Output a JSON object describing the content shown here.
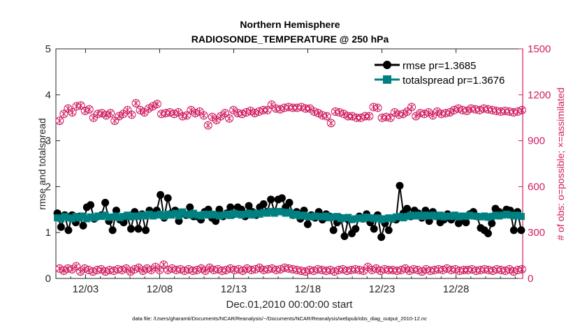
{
  "chart_data": {
    "type": "line",
    "title_line1": "Northern Hemisphere",
    "title_line2": "RADIOSONDE_TEMPERATURE @ 250 hPa",
    "xlabel": "Dec.01,2010 00:00:00 start",
    "ylabel_left": "rmse and totalspread",
    "ylabel_right": "# of obs: o=possible; ×=assimilated",
    "footer": "data file: /Users/gharamti/Documents/NCAR/Reanalysis/~/Documents/NCAR/Reanalysis/webpub/obs_diag_output_2010-12.nc",
    "xlim": [
      0,
      31.5
    ],
    "ylim_left": [
      0,
      5
    ],
    "ylim_right": [
      0,
      1500
    ],
    "x_tick_values": [
      2,
      7,
      12,
      17,
      22,
      27
    ],
    "x_tick_labels": [
      "12/03",
      "12/08",
      "12/13",
      "12/18",
      "12/23",
      "12/28"
    ],
    "y_left_ticks": [
      "0",
      "1",
      "2",
      "3",
      "4",
      "5"
    ],
    "y_right_ticks": [
      "0",
      "300",
      "600",
      "900",
      "1200",
      "1500"
    ],
    "legend": [
      {
        "name": "rmse  pr=1.3685",
        "color": "#000000",
        "marker": "circle"
      },
      {
        "name": "totalspread  pr=1.3676",
        "color": "#008080",
        "marker": "square"
      }
    ],
    "rmse": [
      1.42,
      1.12,
      1.38,
      1.05,
      1.38,
      1.22,
      1.35,
      1.15,
      1.55,
      1.6,
      1.3,
      1.35,
      1.38,
      1.65,
      1.25,
      1.05,
      1.48,
      1.28,
      1.22,
      1.35,
      1.08,
      1.45,
      1.08,
      1.4,
      1.05,
      1.48,
      1.4,
      1.48,
      1.82,
      1.32,
      1.75,
      1.42,
      1.48,
      1.25,
      1.42,
      1.38,
      1.55,
      1.35,
      1.35,
      1.28,
      1.45,
      1.5,
      1.32,
      1.25,
      1.5,
      1.35,
      1.42,
      1.55,
      1.4,
      1.55,
      1.5,
      1.35,
      1.58,
      1.45,
      1.38,
      1.55,
      1.62,
      1.45,
      1.72,
      1.45,
      1.72,
      1.75,
      1.55,
      1.65,
      1.38,
      1.45,
      1.3,
      1.48,
      1.18,
      1.38,
      1.32,
      1.45,
      1.28,
      1.4,
      1.35,
      1.05,
      1.22,
      1.32,
      0.92,
      1.28,
      0.98,
      1.08,
      1.35,
      1.3,
      1.4,
      1.22,
      1.08,
      1.38,
      0.9,
      1.2,
      1.05,
      1.3,
      1.28,
      2.02,
      1.42,
      1.52,
      1.35,
      1.48,
      1.42,
      1.32,
      1.48,
      1.25,
      1.45,
      1.35,
      1.22,
      1.28,
      1.4,
      1.28,
      1.35,
      1.2,
      1.32,
      1.22,
      1.4,
      1.45,
      1.35,
      1.1,
      1.05,
      0.98,
      1.2,
      1.52,
      1.45,
      1.4,
      1.5,
      1.48,
      1.05,
      1.45,
      1.05
    ],
    "totalspread": [
      1.32,
      1.3,
      1.35,
      1.32,
      1.3,
      1.35,
      1.32,
      1.36,
      1.3,
      1.34,
      1.32,
      1.36,
      1.35,
      1.38,
      1.33,
      1.34,
      1.36,
      1.32,
      1.35,
      1.38,
      1.34,
      1.36,
      1.35,
      1.38,
      1.36,
      1.4,
      1.36,
      1.38,
      1.4,
      1.35,
      1.4,
      1.38,
      1.42,
      1.36,
      1.45,
      1.4,
      1.38,
      1.42,
      1.38,
      1.36,
      1.4,
      1.38,
      1.4,
      1.38,
      1.36,
      1.38,
      1.4,
      1.37,
      1.42,
      1.4,
      1.38,
      1.4,
      1.42,
      1.38,
      1.42,
      1.4,
      1.44,
      1.42,
      1.46,
      1.42,
      1.46,
      1.45,
      1.42,
      1.44,
      1.38,
      1.4,
      1.36,
      1.38,
      1.35,
      1.34,
      1.36,
      1.35,
      1.34,
      1.36,
      1.32,
      1.34,
      1.35,
      1.3,
      1.32,
      1.33,
      1.28,
      1.3,
      1.32,
      1.3,
      1.34,
      1.32,
      1.3,
      1.32,
      1.28,
      1.3,
      1.32,
      1.3,
      1.34,
      1.35,
      1.32,
      1.35,
      1.38,
      1.36,
      1.38,
      1.35,
      1.38,
      1.36,
      1.38,
      1.35,
      1.38,
      1.34,
      1.36,
      1.35,
      1.38,
      1.34,
      1.36,
      1.35,
      1.38,
      1.36,
      1.35,
      1.34,
      1.36,
      1.33,
      1.35,
      1.38,
      1.36,
      1.38,
      1.4,
      1.38,
      1.36,
      1.38,
      1.35
    ],
    "obs_possible": [
      1030,
      1075,
      1110,
      1085,
      1125,
      1130,
      1095,
      1105,
      1050,
      1075,
      1080,
      1065,
      1080,
      1030,
      1060,
      1075,
      1100,
      1070,
      1145,
      1100,
      1085,
      1110,
      1125,
      1140,
      1075,
      1080,
      1085,
      1075,
      1085,
      1060,
      1065,
      1100,
      1080,
      1090,
      1065,
      1000,
      1055,
      1035,
      1060,
      1080,
      1045,
      1100,
      1080,
      1075,
      1085,
      1095,
      1080,
      1090,
      1100,
      1100,
      1135,
      1110,
      1105,
      1115,
      1120,
      1115,
      1115,
      1120,
      1110,
      1110,
      1090,
      1080,
      1065,
      1060,
      1015,
      1090,
      1085,
      1075,
      1060,
      1060,
      1050,
      1050,
      1060,
      1060,
      1120,
      1115,
      1050,
      1055,
      1050,
      1085,
      1070,
      1075,
      1090,
      1120,
      1060,
      1080,
      1075,
      1085,
      1065,
      1090,
      1075,
      1080,
      1085,
      1100,
      1110,
      1100,
      1095,
      1110,
      1105,
      1100,
      1110,
      1105,
      1100,
      1095,
      1090,
      1095,
      1090,
      1085,
      1090,
      1100
    ],
    "obs_assimilated": [
      1030,
      1075,
      1110,
      1085,
      1125,
      1130,
      1095,
      1105,
      1050,
      1075,
      1080,
      1065,
      1080,
      1030,
      1060,
      1075,
      1100,
      1070,
      1145,
      1100,
      1085,
      1110,
      1125,
      1140,
      1075,
      1080,
      1085,
      1075,
      1085,
      1060,
      1065,
      1100,
      1080,
      1090,
      1065,
      1000,
      1055,
      1035,
      1060,
      1080,
      1045,
      1100,
      1080,
      1075,
      1085,
      1095,
      1080,
      1090,
      1100,
      1100,
      1135,
      1110,
      1105,
      1115,
      1120,
      1115,
      1115,
      1120,
      1110,
      1110,
      1090,
      1080,
      1065,
      1060,
      1015,
      1090,
      1085,
      1075,
      1060,
      1060,
      1050,
      1050,
      1060,
      1060,
      1120,
      1115,
      1050,
      1055,
      1050,
      1085,
      1070,
      1075,
      1090,
      1120,
      1060,
      1080,
      1075,
      1085,
      1065,
      1090,
      1075,
      1080,
      1085,
      1100,
      1110,
      1100,
      1095,
      1110,
      1105,
      1100,
      1110,
      1105,
      1100,
      1095,
      1090,
      1095,
      1090,
      1085,
      1090,
      1100
    ],
    "obs_low_possible": [
      65,
      50,
      65,
      60,
      80,
      45,
      65,
      55,
      45,
      55,
      60,
      45,
      55,
      50,
      60,
      55,
      65,
      45,
      60,
      70,
      50,
      65,
      55,
      75,
      55,
      90,
      55,
      65,
      55,
      60,
      50,
      60,
      50,
      55,
      65,
      50,
      70,
      55,
      60,
      50,
      55,
      65,
      55,
      60,
      50,
      65,
      55,
      60,
      70,
      55,
      60,
      65,
      55,
      60,
      70,
      65,
      60,
      55,
      50,
      45,
      55,
      50,
      60,
      55,
      50,
      55,
      45,
      55,
      60,
      50,
      55,
      60,
      55,
      50,
      75,
      55,
      65,
      50,
      60,
      55,
      55,
      50,
      55,
      65,
      50,
      60,
      55,
      45,
      60,
      50,
      55,
      60,
      55,
      65,
      55,
      60,
      50,
      55,
      55,
      60,
      50,
      55,
      60,
      55,
      50,
      60,
      55,
      50,
      60,
      45,
      55,
      60
    ],
    "obs_low_assimilated": [
      65,
      50,
      65,
      60,
      80,
      45,
      65,
      55,
      45,
      55,
      60,
      45,
      55,
      50,
      60,
      55,
      65,
      45,
      60,
      70,
      50,
      65,
      55,
      75,
      55,
      90,
      55,
      65,
      55,
      60,
      50,
      60,
      50,
      55,
      65,
      50,
      70,
      55,
      60,
      50,
      55,
      65,
      55,
      60,
      50,
      65,
      55,
      60,
      70,
      55,
      60,
      65,
      55,
      60,
      70,
      65,
      60,
      55,
      50,
      45,
      55,
      50,
      60,
      55,
      50,
      55,
      45,
      55,
      60,
      50,
      55,
      60,
      55,
      50,
      75,
      55,
      65,
      50,
      60,
      55,
      55,
      50,
      55,
      65,
      50,
      60,
      55,
      45,
      60,
      50,
      55,
      60,
      55,
      65,
      55,
      60,
      50,
      55,
      55,
      60,
      50,
      55,
      60,
      55,
      50,
      60,
      55,
      50,
      60,
      45,
      55,
      60
    ]
  }
}
